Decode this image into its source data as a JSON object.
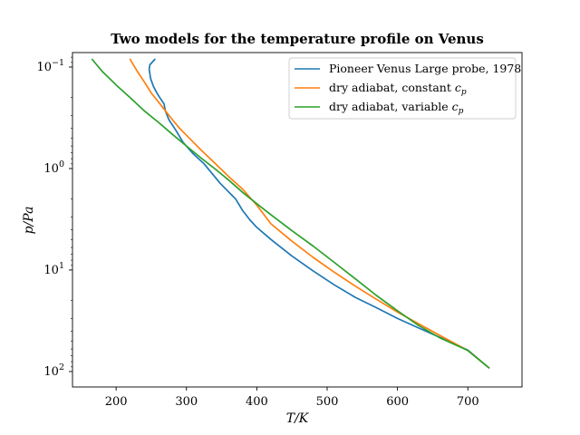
{
  "chart_data": {
    "type": "line",
    "title": "Two models for the temperature profile on Venus",
    "xlabel": "T/K",
    "ylabel": "p/Pa",
    "xlim": [
      138,
      777
    ],
    "ylim": [
      0.072,
      142
    ],
    "y_scale": "log",
    "y_inverted": true,
    "grid": false,
    "legend_position": "top-right",
    "x_ticks": [
      200,
      300,
      400,
      500,
      600,
      700
    ],
    "y_ticks": [
      {
        "value": 0.1,
        "label": "10^-1"
      },
      {
        "value": 1,
        "label": "10^0"
      },
      {
        "value": 10,
        "label": "10^1"
      },
      {
        "value": 100,
        "label": "10^2"
      }
    ],
    "series": [
      {
        "name": "Pioneer Venus Large probe, 1978",
        "color": "#1f77b4",
        "x": [
          255,
          248,
          247,
          249,
          253,
          258,
          262,
          268,
          270,
          275,
          285,
          295,
          310,
          325,
          340,
          348,
          360,
          370,
          380,
          390,
          400,
          420,
          450,
          480,
          510,
          540,
          570,
          600,
          630,
          660,
          700,
          730
        ],
        "y": [
          0.084,
          0.095,
          0.105,
          0.13,
          0.155,
          0.18,
          0.2,
          0.23,
          0.27,
          0.33,
          0.42,
          0.55,
          0.72,
          0.9,
          1.2,
          1.4,
          1.7,
          2.0,
          2.6,
          3.2,
          3.8,
          5.0,
          7.3,
          10.2,
          14.0,
          18.6,
          23.5,
          30.0,
          37.2,
          46.0,
          61.5,
          92.0
        ]
      },
      {
        "name": "dry adiabat, constant c_p",
        "color": "#ff7f0e",
        "x": [
          220,
          230,
          240,
          250,
          260,
          270,
          280,
          290,
          300,
          320,
          340,
          360,
          380,
          400,
          420,
          450,
          480,
          510,
          540,
          570,
          600,
          630,
          660,
          700,
          730
        ],
        "y": [
          0.084,
          0.11,
          0.14,
          0.18,
          0.22,
          0.27,
          0.33,
          0.4,
          0.47,
          0.65,
          0.88,
          1.2,
          1.6,
          2.3,
          3.5,
          5.2,
          7.5,
          10.5,
          14.4,
          19.4,
          26.0,
          33.8,
          44.0,
          62.0,
          92.0
        ]
      },
      {
        "name": "dry adiabat, variable c_p",
        "color": "#2ca02c",
        "x": [
          166,
          180,
          200,
          220,
          240,
          260,
          280,
          300,
          320,
          340,
          360,
          380,
          400,
          420,
          450,
          480,
          510,
          540,
          570,
          600,
          630,
          660,
          700,
          730
        ],
        "y": [
          0.084,
          0.11,
          0.15,
          0.2,
          0.27,
          0.35,
          0.46,
          0.6,
          0.78,
          1.0,
          1.3,
          1.72,
          2.22,
          2.85,
          4.1,
          5.8,
          8.4,
          12.2,
          17.8,
          25.2,
          35.2,
          46.5,
          62.0,
          92.0
        ]
      }
    ]
  },
  "legend": {
    "items": [
      {
        "text": "Pioneer Venus Large probe, 1978",
        "var": ""
      },
      {
        "text": "dry adiabat, constant ",
        "var": "c",
        "sub": "p"
      },
      {
        "text": "dry adiabat, variable ",
        "var": "c",
        "sub": "p"
      }
    ]
  }
}
